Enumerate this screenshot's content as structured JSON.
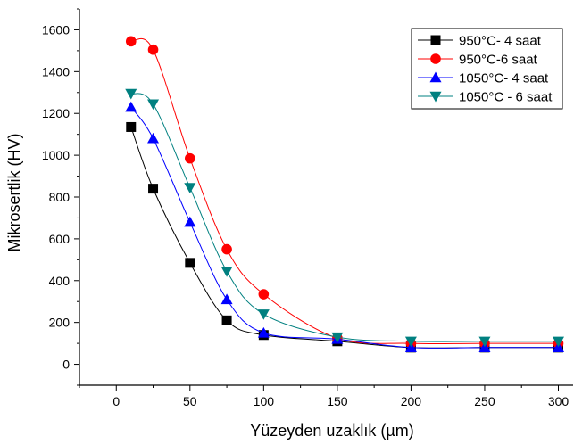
{
  "chart_data": {
    "type": "line",
    "xlabel": "Yüzeyden uzaklık (µm)",
    "ylabel": "Mikrosertlik (HV)",
    "xlim": [
      -25,
      310
    ],
    "ylim": [
      -100,
      1700
    ],
    "x_ticks": [
      0,
      50,
      100,
      150,
      200,
      250,
      300
    ],
    "y_ticks": [
      0,
      200,
      400,
      600,
      800,
      1000,
      1200,
      1400,
      1600
    ],
    "legend_position": "top-right",
    "grid": false,
    "x": [
      10,
      25,
      50,
      75,
      100,
      150,
      200,
      250,
      300
    ],
    "series": [
      {
        "name": "950°C- 4 saat",
        "color": "#000000",
        "marker": "square",
        "values": [
          1135,
          840,
          485,
          210,
          140,
          110,
          80,
          80,
          80
        ]
      },
      {
        "name": "950°C-6 saat",
        "color": "#ff0000",
        "marker": "circle",
        "values": [
          1545,
          1505,
          985,
          550,
          335,
          125,
          100,
          100,
          100
        ]
      },
      {
        "name": "1050°C- 4 saat",
        "color": "#0000ff",
        "marker": "triangle-up",
        "values": [
          1230,
          1080,
          680,
          310,
          150,
          120,
          80,
          80,
          80
        ]
      },
      {
        "name": "1050°C - 6 saat",
        "color": "#008080",
        "marker": "triangle-down",
        "values": [
          1295,
          1245,
          845,
          445,
          240,
          130,
          110,
          110,
          110
        ]
      }
    ]
  }
}
